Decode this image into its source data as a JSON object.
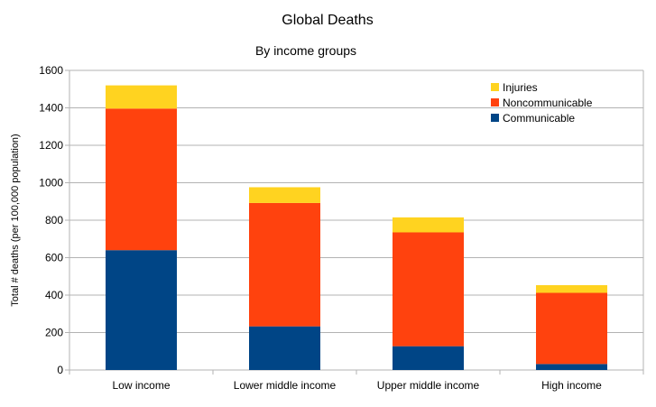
{
  "chart_data": {
    "type": "bar",
    "stacked": true,
    "title": "Global Deaths",
    "subtitle": "By income groups",
    "xlabel": "",
    "ylabel": "Total # deaths (per 100,000 population)",
    "ylim": [
      0,
      1600
    ],
    "yticks": [
      0,
      200,
      400,
      600,
      800,
      1000,
      1200,
      1400,
      1600
    ],
    "grid": true,
    "legend_position": "top-right",
    "categories": [
      "Low income",
      "Lower middle income",
      "Upper middle income",
      "High income"
    ],
    "series": [
      {
        "name": "Communicable",
        "color": "#004586",
        "values": [
          640,
          233,
          127,
          32
        ]
      },
      {
        "name": "Noncommunicable",
        "color": "#ff420e",
        "values": [
          756,
          659,
          608,
          380
        ]
      },
      {
        "name": "Injuries",
        "color": "#ffd320",
        "values": [
          124,
          84,
          80,
          41
        ]
      }
    ]
  }
}
